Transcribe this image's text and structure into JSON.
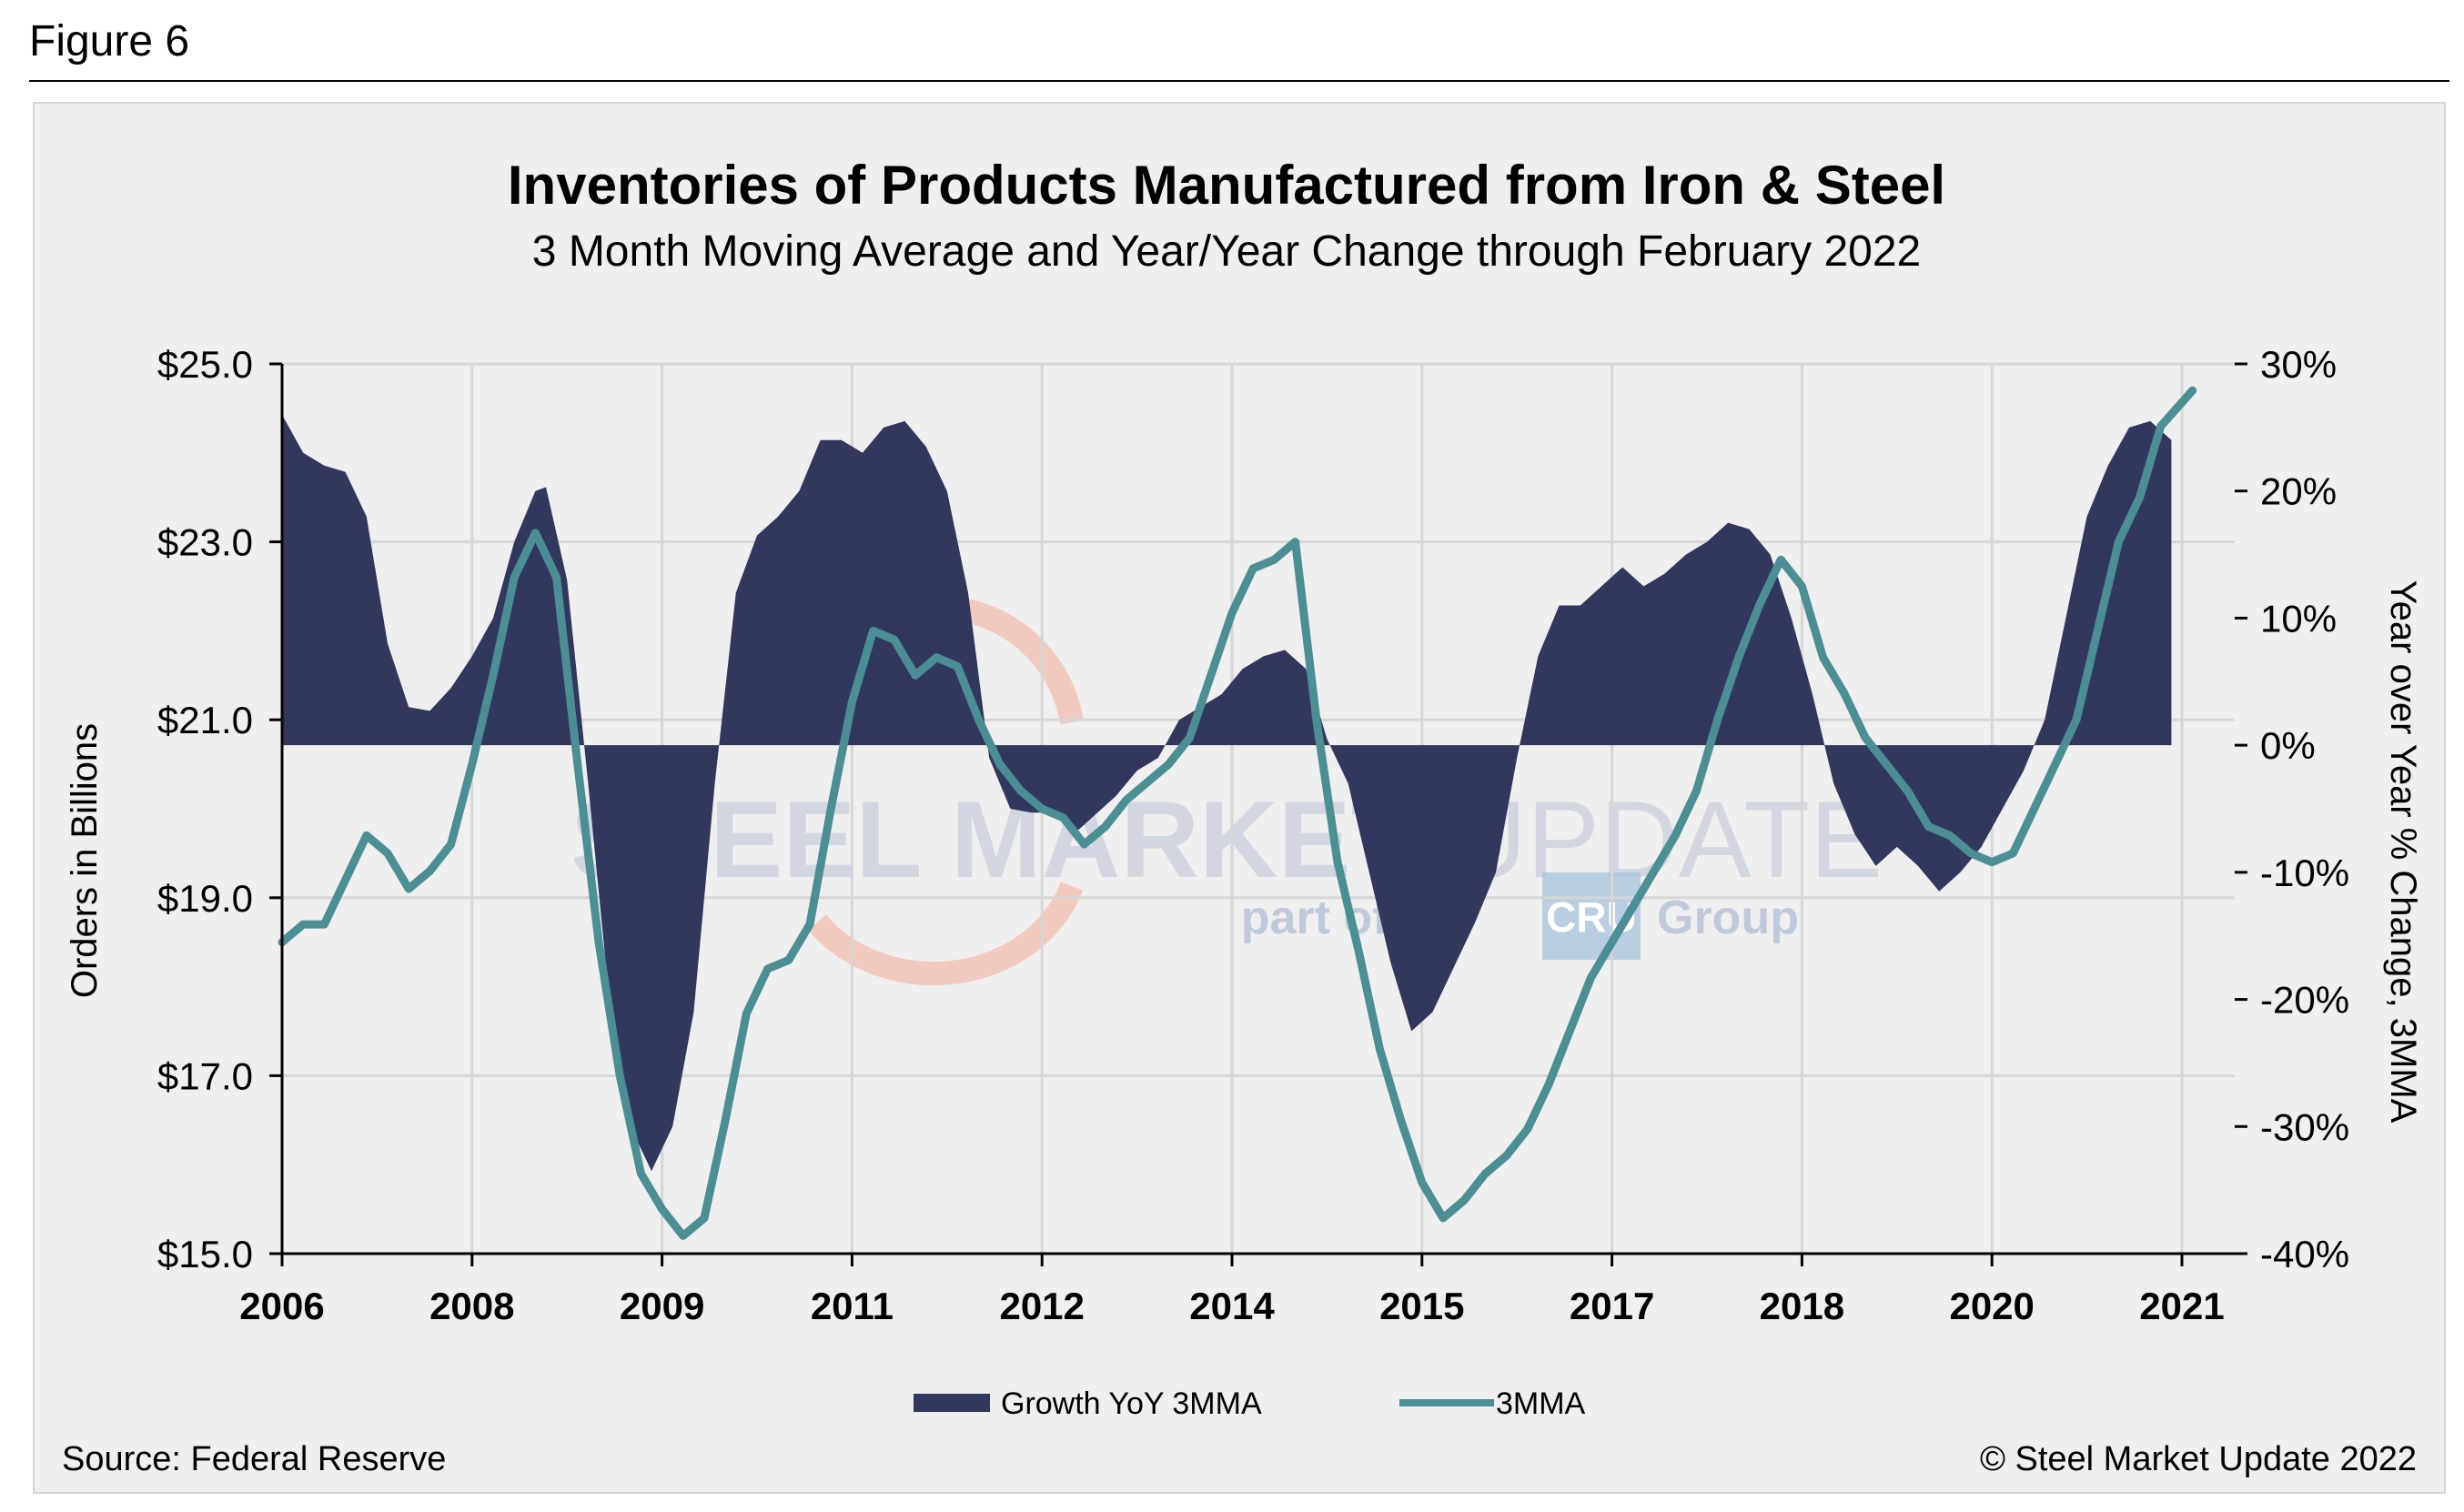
{
  "figure_label": "Figure 6",
  "source": "Source: Federal Reserve",
  "copyright": "© Steel Market Update 2022",
  "watermark": {
    "brand_bold": "STEEL MARKET ",
    "brand_thin": "UPDATE",
    "tagline_before": "part of the",
    "tagline_box": "CRU",
    "tagline_after": "Group"
  },
  "colors": {
    "area": "#32375e",
    "line": "#4b8f95",
    "grid": "#d6d6d6",
    "panel": "#efefef"
  },
  "chart_data": {
    "type": "area",
    "title": "Inventories of Products Manufactured from Iron & Steel",
    "subtitle": "3 Month Moving Average and Year/Year Change through February 2022",
    "ylabel_left": "Orders in Billions",
    "ylabel_right": "Year over Year % Change, 3MMA",
    "ylim_left": [
      15,
      25
    ],
    "ylim_right": [
      -40,
      30
    ],
    "yticks_left": [
      "$25.0",
      "$23.0",
      "$21.0",
      "$19.0",
      "$17.0",
      "$15.0"
    ],
    "yticks_left_values": [
      25,
      23,
      21,
      19,
      17,
      15
    ],
    "yticks_right": [
      "30%",
      "20%",
      "10%",
      "0%",
      "-10%",
      "-20%",
      "-30%",
      "-40%"
    ],
    "yticks_right_values": [
      30,
      20,
      10,
      0,
      -10,
      -20,
      -30,
      -40
    ],
    "x_tick_labels": [
      "2006",
      "2008",
      "2009",
      "2011",
      "2012",
      "2014",
      "2015",
      "2017",
      "2018",
      "2020",
      "2021"
    ],
    "x_tick_dates": [
      "2006-01",
      "2007-07",
      "2009-01",
      "2010-07",
      "2012-01",
      "2013-07",
      "2015-01",
      "2016-07",
      "2018-01",
      "2019-07",
      "2021-01"
    ],
    "legend_position": "bottom",
    "grid": true,
    "series": [
      {
        "name": "Growth YoY 3MMA",
        "kind": "area",
        "axis": "right",
        "points": [
          [
            "2006-01",
            26
          ],
          [
            "2006-03",
            23
          ],
          [
            "2006-05",
            22
          ],
          [
            "2006-07",
            21.5
          ],
          [
            "2006-09",
            18
          ],
          [
            "2006-11",
            8
          ],
          [
            "2007-01",
            3
          ],
          [
            "2007-03",
            2.7
          ],
          [
            "2007-05",
            4.5
          ],
          [
            "2007-07",
            7
          ],
          [
            "2007-09",
            10
          ],
          [
            "2007-11",
            16
          ],
          [
            "2008-01",
            20
          ],
          [
            "2008-02",
            20.3
          ],
          [
            "2008-04",
            13
          ],
          [
            "2008-06",
            -3
          ],
          [
            "2008-08",
            -20
          ],
          [
            "2008-10",
            -30
          ],
          [
            "2008-12",
            -33.5
          ],
          [
            "2009-02",
            -30
          ],
          [
            "2009-04",
            -21
          ],
          [
            "2009-06",
            -3
          ],
          [
            "2009-08",
            12
          ],
          [
            "2009-10",
            16.5
          ],
          [
            "2009-12",
            18
          ],
          [
            "2010-02",
            20
          ],
          [
            "2010-04",
            24
          ],
          [
            "2010-06",
            24
          ],
          [
            "2010-08",
            23
          ],
          [
            "2010-10",
            25
          ],
          [
            "2010-12",
            25.5
          ],
          [
            "2011-02",
            23.5
          ],
          [
            "2011-04",
            20
          ],
          [
            "2011-06",
            12
          ],
          [
            "2011-08",
            -1
          ],
          [
            "2011-10",
            -5
          ],
          [
            "2011-12",
            -5.3
          ],
          [
            "2012-02",
            -5.3
          ],
          [
            "2012-04",
            -7
          ],
          [
            "2012-06",
            -5.5
          ],
          [
            "2012-08",
            -4
          ],
          [
            "2012-10",
            -2
          ],
          [
            "2012-12",
            -1
          ],
          [
            "2013-02",
            2
          ],
          [
            "2013-04",
            3
          ],
          [
            "2013-06",
            4
          ],
          [
            "2013-08",
            6
          ],
          [
            "2013-10",
            7
          ],
          [
            "2013-12",
            7.5
          ],
          [
            "2014-02",
            6
          ],
          [
            "2014-04",
            0.5
          ],
          [
            "2014-06",
            -3
          ],
          [
            "2014-08",
            -10
          ],
          [
            "2014-10",
            -17
          ],
          [
            "2014-12",
            -22.5
          ],
          [
            "2015-02",
            -21
          ],
          [
            "2015-04",
            -17.5
          ],
          [
            "2015-06",
            -14
          ],
          [
            "2015-08",
            -10
          ],
          [
            "2015-10",
            -1
          ],
          [
            "2015-12",
            7
          ],
          [
            "2016-02",
            11
          ],
          [
            "2016-04",
            11
          ],
          [
            "2016-06",
            12.5
          ],
          [
            "2016-08",
            14
          ],
          [
            "2016-10",
            12.5
          ],
          [
            "2016-12",
            13.5
          ],
          [
            "2017-02",
            15
          ],
          [
            "2017-04",
            16
          ],
          [
            "2017-06",
            17.5
          ],
          [
            "2017-08",
            17
          ],
          [
            "2017-10",
            15
          ],
          [
            "2017-12",
            10
          ],
          [
            "2018-02",
            4
          ],
          [
            "2018-04",
            -3
          ],
          [
            "2018-06",
            -7
          ],
          [
            "2018-08",
            -9.5
          ],
          [
            "2018-10",
            -8
          ],
          [
            "2018-12",
            -9.5
          ],
          [
            "2019-02",
            -11.5
          ],
          [
            "2019-04",
            -10
          ],
          [
            "2019-06",
            -8
          ],
          [
            "2019-08",
            -5
          ],
          [
            "2019-10",
            -2
          ],
          [
            "2019-12",
            2
          ],
          [
            "2020-02",
            10
          ],
          [
            "2020-04",
            18
          ],
          [
            "2020-06",
            22
          ],
          [
            "2020-08",
            25
          ],
          [
            "2020-10",
            25.5
          ],
          [
            "2020-12",
            24
          ]
        ]
      },
      {
        "name": "3MMA",
        "kind": "line",
        "axis": "left",
        "points": [
          [
            "2006-01",
            18.5
          ],
          [
            "2006-03",
            18.7
          ],
          [
            "2006-05",
            18.7
          ],
          [
            "2006-07",
            19.2
          ],
          [
            "2006-09",
            19.7
          ],
          [
            "2006-11",
            19.5
          ],
          [
            "2007-01",
            19.1
          ],
          [
            "2007-03",
            19.3
          ],
          [
            "2007-05",
            19.6
          ],
          [
            "2007-07",
            20.5
          ],
          [
            "2007-09",
            21.5
          ],
          [
            "2007-11",
            22.6
          ],
          [
            "2008-01",
            23.1
          ],
          [
            "2008-03",
            22.6
          ],
          [
            "2008-05",
            20.5
          ],
          [
            "2008-07",
            18.5
          ],
          [
            "2008-09",
            17
          ],
          [
            "2008-11",
            15.9
          ],
          [
            "2009-01",
            15.5
          ],
          [
            "2009-03",
            15.2
          ],
          [
            "2009-05",
            15.4
          ],
          [
            "2009-07",
            16.5
          ],
          [
            "2009-09",
            17.7
          ],
          [
            "2009-11",
            18.2
          ],
          [
            "2010-01",
            18.3
          ],
          [
            "2010-03",
            18.7
          ],
          [
            "2010-05",
            20
          ],
          [
            "2010-07",
            21.2
          ],
          [
            "2010-09",
            22
          ],
          [
            "2010-11",
            21.9
          ],
          [
            "2011-01",
            21.5
          ],
          [
            "2011-03",
            21.7
          ],
          [
            "2011-05",
            21.6
          ],
          [
            "2011-07",
            21
          ],
          [
            "2011-09",
            20.5
          ],
          [
            "2011-11",
            20.2
          ],
          [
            "2012-01",
            20
          ],
          [
            "2012-03",
            19.9
          ],
          [
            "2012-05",
            19.6
          ],
          [
            "2012-07",
            19.8
          ],
          [
            "2012-09",
            20.1
          ],
          [
            "2012-11",
            20.3
          ],
          [
            "2013-01",
            20.5
          ],
          [
            "2013-03",
            20.8
          ],
          [
            "2013-05",
            21.5
          ],
          [
            "2013-07",
            22.2
          ],
          [
            "2013-09",
            22.7
          ],
          [
            "2013-11",
            22.8
          ],
          [
            "2014-01",
            23
          ],
          [
            "2014-03",
            21
          ],
          [
            "2014-05",
            19.4
          ],
          [
            "2014-07",
            18.4
          ],
          [
            "2014-09",
            17.3
          ],
          [
            "2014-11",
            16.5
          ],
          [
            "2015-01",
            15.8
          ],
          [
            "2015-03",
            15.4
          ],
          [
            "2015-05",
            15.6
          ],
          [
            "2015-07",
            15.9
          ],
          [
            "2015-09",
            16.1
          ],
          [
            "2015-11",
            16.4
          ],
          [
            "2016-01",
            16.9
          ],
          [
            "2016-03",
            17.5
          ],
          [
            "2016-05",
            18.1
          ],
          [
            "2016-07",
            18.5
          ],
          [
            "2016-09",
            18.9
          ],
          [
            "2016-11",
            19.3
          ],
          [
            "2017-01",
            19.7
          ],
          [
            "2017-03",
            20.2
          ],
          [
            "2017-05",
            21
          ],
          [
            "2017-07",
            21.7
          ],
          [
            "2017-09",
            22.3
          ],
          [
            "2017-11",
            22.8
          ],
          [
            "2018-01",
            22.5
          ],
          [
            "2018-03",
            21.7
          ],
          [
            "2018-05",
            21.3
          ],
          [
            "2018-07",
            20.8
          ],
          [
            "2018-09",
            20.5
          ],
          [
            "2018-11",
            20.2
          ],
          [
            "2019-01",
            19.8
          ],
          [
            "2019-03",
            19.7
          ],
          [
            "2019-05",
            19.5
          ],
          [
            "2019-07",
            19.4
          ],
          [
            "2019-09",
            19.5
          ],
          [
            "2019-11",
            20
          ],
          [
            "2020-01",
            20.5
          ],
          [
            "2020-03",
            21
          ],
          [
            "2020-05",
            22
          ],
          [
            "2020-07",
            23
          ],
          [
            "2020-09",
            23.5
          ],
          [
            "2020-11",
            24.3
          ],
          [
            "2021-02",
            24.7
          ]
        ]
      }
    ]
  }
}
